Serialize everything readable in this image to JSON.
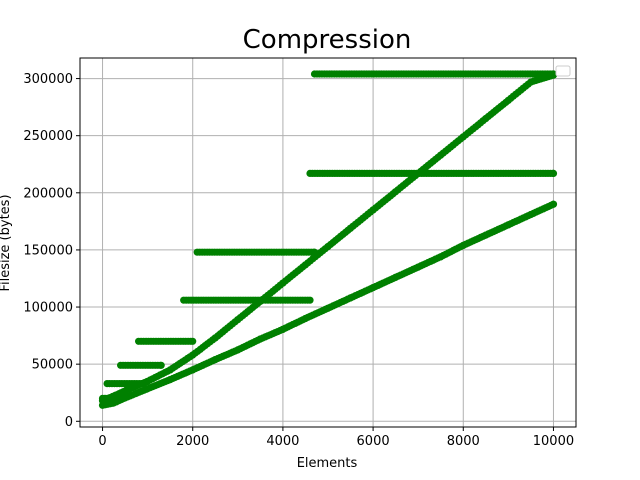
{
  "chart_data": {
    "type": "scatter",
    "title": "Compression",
    "xlabel": "Elements",
    "ylabel": "Filesize (bytes)",
    "xlim": [
      -500,
      10500
    ],
    "ylim": [
      -5000,
      318000
    ],
    "xticks": [
      0,
      2000,
      4000,
      6000,
      8000,
      10000
    ],
    "yticks": [
      0,
      50000,
      100000,
      150000,
      200000,
      250000,
      300000
    ],
    "grid": true,
    "legend": {
      "placement": "top-right",
      "entries": []
    },
    "marker_color": "#008000",
    "series": [
      {
        "points": [
          [
            0,
            14000
          ],
          [
            250,
            16000
          ],
          [
            500,
            20500
          ],
          [
            750,
            24500
          ],
          [
            1000,
            28500
          ],
          [
            1500,
            36500
          ],
          [
            2000,
            45000
          ],
          [
            2500,
            54000
          ],
          [
            3000,
            62500
          ],
          [
            3500,
            72000
          ],
          [
            4000,
            80500
          ],
          [
            4500,
            90000
          ],
          [
            5000,
            99000
          ],
          [
            5500,
            108000
          ],
          [
            6000,
            117000
          ],
          [
            6500,
            126000
          ],
          [
            7000,
            135000
          ],
          [
            7500,
            144000
          ],
          [
            8000,
            154000
          ],
          [
            8500,
            163000
          ],
          [
            9000,
            172000
          ],
          [
            9500,
            181000
          ],
          [
            10000,
            190000
          ]
        ]
      },
      {
        "points": [
          [
            0,
            18000
          ],
          [
            300,
            23000
          ],
          [
            600,
            28500
          ],
          [
            1000,
            35000
          ],
          [
            1500,
            45000
          ],
          [
            2000,
            58000
          ],
          [
            2500,
            73000
          ],
          [
            3000,
            89000
          ],
          [
            3500,
            105000
          ],
          [
            4000,
            121000
          ],
          [
            4500,
            137000
          ],
          [
            5000,
            153000
          ],
          [
            5500,
            169000
          ],
          [
            6000,
            185000
          ],
          [
            6500,
            201000
          ],
          [
            7000,
            217000
          ],
          [
            7500,
            233000
          ],
          [
            8000,
            249000
          ],
          [
            8500,
            265000
          ],
          [
            9000,
            281000
          ],
          [
            9500,
            297000
          ],
          [
            10000,
            303000
          ]
        ]
      },
      {
        "segments": [
          {
            "x": [
              0,
              300
            ],
            "y": 20000
          },
          {
            "x": [
              100,
              900
            ],
            "y": 33000
          },
          {
            "x": [
              400,
              1300
            ],
            "y": 49000
          },
          {
            "x": [
              800,
              2000
            ],
            "y": 70000
          },
          {
            "x": [
              1800,
              4600
            ],
            "y": 106000
          },
          {
            "x": [
              2100,
              4700
            ],
            "y": 148000
          },
          {
            "x": [
              4600,
              10000
            ],
            "y": 217000
          },
          {
            "x": [
              4700,
              10000
            ],
            "y": 304000
          }
        ]
      }
    ]
  }
}
